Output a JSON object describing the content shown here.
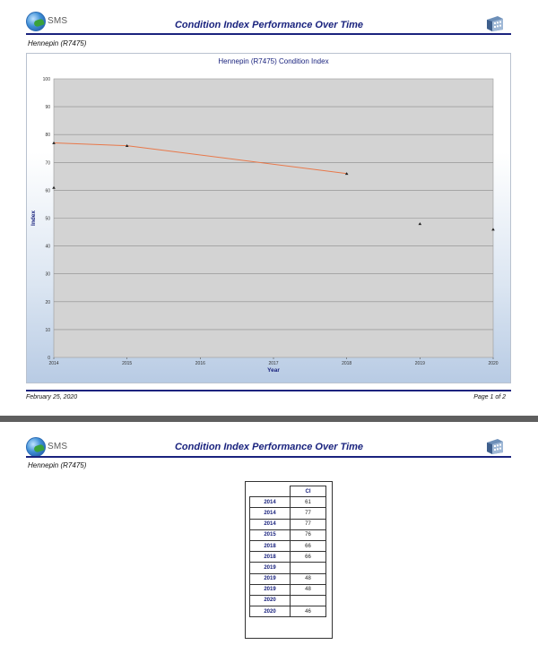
{
  "report": {
    "logo_text": "SMS",
    "title": "Condition Index Performance Over Time",
    "asset": "Hennepin (R7475)",
    "date": "February 25, 2020",
    "page1_label": "Page 1 of 2"
  },
  "chart_data": {
    "type": "scatter",
    "title": "Hennepin (R7475) Condition Index",
    "xlabel": "Year",
    "ylabel": "Index",
    "xlim": [
      2014,
      2020
    ],
    "ylim": [
      0,
      100
    ],
    "x_ticks": [
      "2014",
      "2015",
      "2016",
      "2017",
      "2018",
      "2019",
      "2020"
    ],
    "y_ticks": [
      "100",
      "90",
      "80",
      "70",
      "60",
      "50",
      "40",
      "30",
      "20",
      "10",
      "0"
    ],
    "points": [
      {
        "x": 2014,
        "y": 61
      },
      {
        "x": 2014,
        "y": 77
      },
      {
        "x": 2015,
        "y": 76
      },
      {
        "x": 2018,
        "y": 66
      },
      {
        "x": 2019,
        "y": 48
      },
      {
        "x": 2020,
        "y": 46
      }
    ],
    "trend_line": [
      {
        "x": 2014,
        "y": 77
      },
      {
        "x": 2015,
        "y": 76
      },
      {
        "x": 2018,
        "y": 66
      }
    ],
    "grid": true,
    "colors": {
      "trend": "#e8784a",
      "plot_bg": "#d3d3d3",
      "marker": "#222222"
    }
  },
  "table": {
    "header": "CI",
    "rows": [
      {
        "year": "2014",
        "ci": "61"
      },
      {
        "year": "2014",
        "ci": "77"
      },
      {
        "year": "2014",
        "ci": "77"
      },
      {
        "year": "2015",
        "ci": "76"
      },
      {
        "year": "2018",
        "ci": "66"
      },
      {
        "year": "2018",
        "ci": "66"
      },
      {
        "year": "2019",
        "ci": ""
      },
      {
        "year": "2019",
        "ci": "48"
      },
      {
        "year": "2019",
        "ci": "48"
      },
      {
        "year": "2020",
        "ci": ""
      },
      {
        "year": "2020",
        "ci": "46"
      }
    ]
  }
}
